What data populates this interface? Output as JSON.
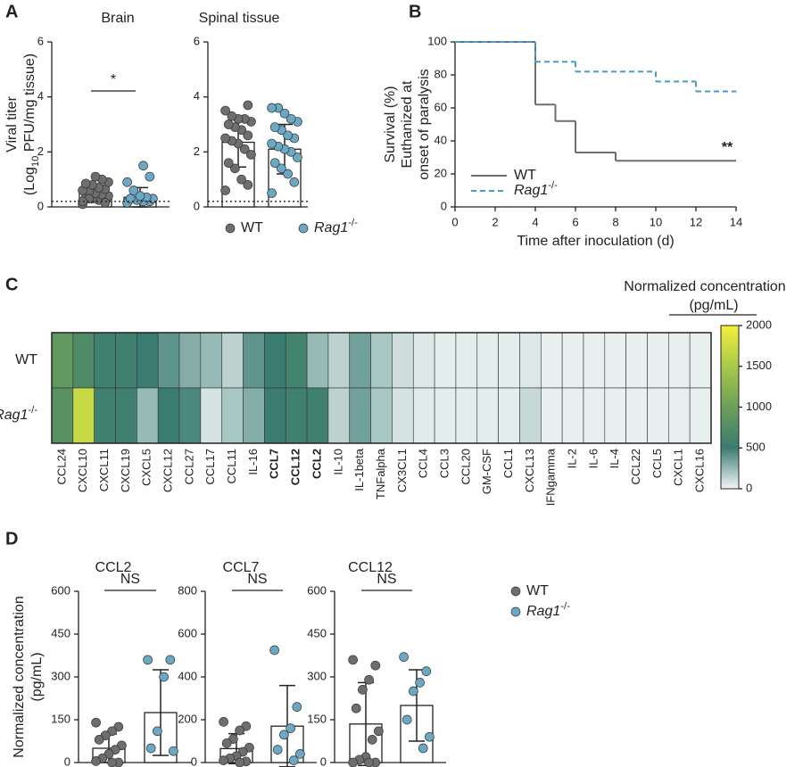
{
  "panel_labels": [
    "A",
    "B",
    "C",
    "D"
  ],
  "chart_data": [
    {
      "type": "bar",
      "title": "Brain",
      "y_label": [
        "Viral titer",
        "(Log10 PFU/mg tissue)"
      ],
      "ylim": [
        0,
        6
      ],
      "yticks": [
        0,
        2,
        4,
        6
      ],
      "reference_line": 0.2,
      "significance": "*",
      "legend": "bottom",
      "series": [
        {
          "name": "WT",
          "color": "#6e6e6e",
          "value": 0.5,
          "error": 0.2,
          "points": [
            0.1,
            0.2,
            0.25,
            0.3,
            0.35,
            0.4,
            0.45,
            0.5,
            0.55,
            0.6,
            0.65,
            0.7,
            0.8,
            0.85,
            0.9,
            1.0,
            1.1,
            0.3,
            0.2,
            0.15
          ]
        },
        {
          "name": "Rag1-/-",
          "color": "#6aa8c4",
          "value": 0.35,
          "error": 0.35,
          "points": [
            0.15,
            0.2,
            0.2,
            0.25,
            0.3,
            0.3,
            0.35,
            0.4,
            0.6,
            0.9,
            1.1,
            1.5
          ]
        }
      ]
    },
    {
      "type": "bar",
      "title": "Spinal tissue",
      "ylim": [
        0,
        6
      ],
      "yticks": [
        0,
        2,
        4,
        6
      ],
      "reference_line": 0.2,
      "series": [
        {
          "color": "#6e6e6e",
          "value": 2.35,
          "error": 0.9,
          "points": [
            0.6,
            0.8,
            1.0,
            1.4,
            1.6,
            1.9,
            2.1,
            2.3,
            2.4,
            2.5,
            2.6,
            2.8,
            2.9,
            3.0,
            3.1,
            3.2,
            3.2,
            3.3,
            3.5,
            3.7
          ]
        },
        {
          "color": "#6aa8c4",
          "value": 2.1,
          "error": 0.9,
          "points": [
            0.5,
            0.9,
            1.2,
            1.4,
            1.6,
            1.8,
            2.0,
            2.1,
            2.2,
            2.3,
            2.5,
            2.6,
            2.8,
            2.9,
            3.1,
            3.2,
            3.4,
            3.6,
            3.6
          ]
        }
      ]
    },
    {
      "type": "line",
      "step": true,
      "y_label": [
        "Survival (%)",
        "Euthanized at",
        "onset of paralysis"
      ],
      "x_label": "Time after inoculation (d)",
      "annotation": "**",
      "xlim": [
        0,
        14
      ],
      "xticks": [
        0,
        2,
        4,
        6,
        8,
        10,
        12,
        14
      ],
      "ylim": [
        0,
        100
      ],
      "yticks": [
        0,
        20,
        40,
        60,
        80,
        100
      ],
      "series": [
        {
          "name": "WT",
          "color": "#6e6e6e",
          "dash": false,
          "x": [
            0,
            4,
            5,
            6,
            8,
            14
          ],
          "values": [
            100,
            62,
            52,
            33,
            28,
            28
          ]
        },
        {
          "name": "Rag1-/-",
          "color": "#4a9cc8",
          "dash": true,
          "x": [
            0,
            4,
            6,
            10,
            12,
            14
          ],
          "values": [
            100,
            88,
            82,
            76,
            70,
            70
          ]
        }
      ]
    },
    {
      "type": "heatmap",
      "legend_title": [
        "Normalized concentration",
        "(pg/mL)"
      ],
      "zlim": [
        0,
        2000
      ],
      "zticks": [
        0,
        500,
        1000,
        1500,
        2000
      ],
      "colormap": [
        "#f2f7f7",
        "#3a7c72",
        "#6c9f58",
        "#a9c94a",
        "#f4f03a"
      ],
      "bold_indices": [
        10,
        11,
        12
      ],
      "categories": [
        "CCL24",
        "CXCL10",
        "CXCL11",
        "CXCL19",
        "CXCL5",
        "CXCL12",
        "CCL27",
        "CCL17",
        "CCL11",
        "IL-16",
        "CCL7",
        "CCL12",
        "CCL2",
        "IL-10",
        "IL-1beta",
        "TNFalpha",
        "CX3CL1",
        "CCL4",
        "CCL3",
        "CCL20",
        "GM-CSF",
        "CCL1",
        "CXCL13",
        "IFNgamma",
        "IL-2",
        "IL-6",
        "IL-4",
        "CCL22",
        "CCL5",
        "CXCL1",
        "CXCL16"
      ],
      "series": [
        {
          "name": "WT",
          "values": [
            900,
            700,
            550,
            550,
            500,
            400,
            300,
            250,
            150,
            400,
            500,
            600,
            250,
            150,
            350,
            200,
            100,
            60,
            40,
            40,
            40,
            40,
            60,
            30,
            30,
            30,
            30,
            30,
            30,
            30,
            30
          ]
        },
        {
          "name": "Rag1-/-",
          "values": [
            800,
            1700,
            550,
            550,
            250,
            500,
            450,
            80,
            200,
            300,
            500,
            550,
            550,
            150,
            350,
            200,
            80,
            50,
            40,
            40,
            40,
            40,
            120,
            30,
            30,
            30,
            30,
            30,
            30,
            30,
            30
          ]
        }
      ]
    },
    {
      "type": "bar",
      "title": "CCL2",
      "y_label": [
        "Normalized concentration",
        "(pg/mL)"
      ],
      "ylim": [
        0,
        600
      ],
      "yticks": [
        0,
        150,
        300,
        450,
        600
      ],
      "significance": "NS",
      "legend": "right",
      "series": [
        {
          "name": "WT",
          "color": "#6e6e6e",
          "value": 50,
          "error": 50,
          "points": [
            140,
            125,
            110,
            95,
            80,
            60,
            45,
            30,
            15,
            5,
            0,
            0
          ]
        },
        {
          "name": "Rag1-/-",
          "color": "#6aa8c4",
          "value": 175,
          "error": 150,
          "points": [
            360,
            360,
            300,
            110,
            50,
            40
          ]
        }
      ]
    },
    {
      "type": "bar",
      "title": "CCL7",
      "ylim": [
        0,
        800
      ],
      "yticks": [
        0,
        200,
        400,
        600,
        800
      ],
      "significance": "NS",
      "series": [
        {
          "color": "#6e6e6e",
          "value": 65,
          "error": 70,
          "points": [
            190,
            170,
            150,
            110,
            90,
            70,
            50,
            30,
            20,
            10,
            5,
            0
          ]
        },
        {
          "color": "#6aa8c4",
          "value": 170,
          "error": 190,
          "points": [
            525,
            260,
            160,
            130,
            60,
            40,
            10
          ]
        }
      ]
    },
    {
      "type": "bar",
      "title": "CCL12",
      "ylim": [
        0,
        600
      ],
      "yticks": [
        0,
        150,
        300,
        450,
        600
      ],
      "significance": "NS",
      "series": [
        {
          "color": "#6e6e6e",
          "value": 135,
          "error": 145,
          "points": [
            360,
            340,
            290,
            255,
            190,
            110,
            80,
            20,
            10,
            0,
            0,
            0
          ]
        },
        {
          "color": "#6aa8c4",
          "value": 200,
          "error": 125,
          "points": [
            370,
            320,
            280,
            250,
            150,
            90,
            50
          ]
        }
      ]
    }
  ]
}
